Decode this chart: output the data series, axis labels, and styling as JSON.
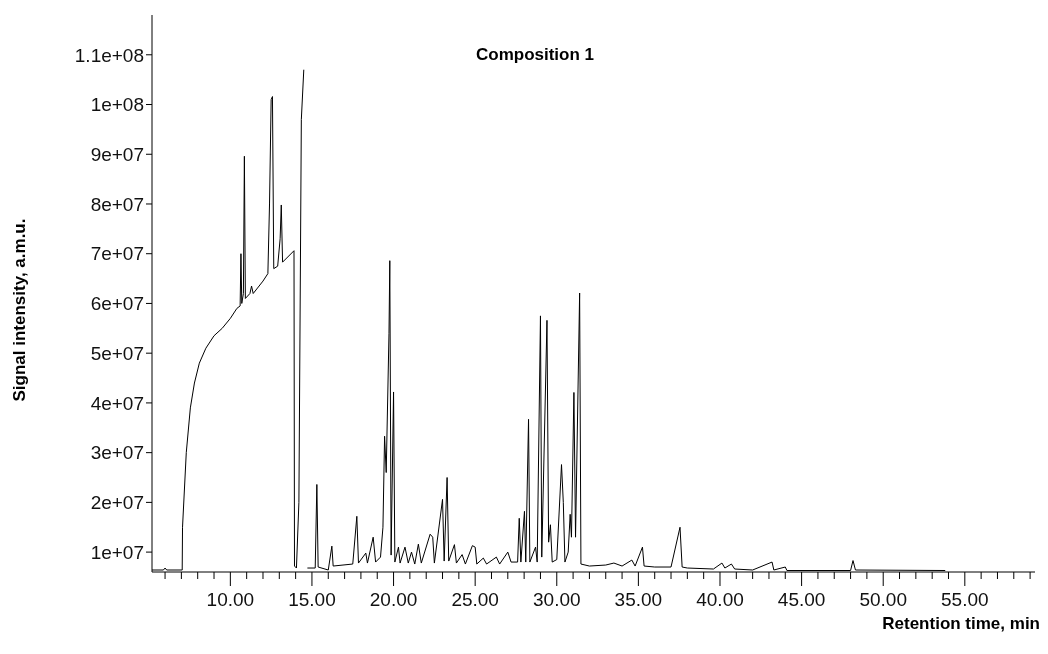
{
  "chart_data": {
    "type": "line",
    "title": "Composition 1",
    "xlabel": "Retention time, min",
    "ylabel": "Signal intensity, a.m.u.",
    "xlim": [
      5.2,
      59.3
    ],
    "ylim": [
      6000000,
      118000000
    ],
    "xticks": [
      {
        "value": 6,
        "label": null
      },
      {
        "value": 7,
        "label": null
      },
      {
        "value": 8,
        "label": null
      },
      {
        "value": 9,
        "label": null
      },
      {
        "value": 10,
        "label": "10.00"
      },
      {
        "value": 11,
        "label": null
      },
      {
        "value": 12,
        "label": null
      },
      {
        "value": 13,
        "label": null
      },
      {
        "value": 14,
        "label": null
      },
      {
        "value": 15,
        "label": "15.00"
      },
      {
        "value": 16,
        "label": null
      },
      {
        "value": 17,
        "label": null
      },
      {
        "value": 18,
        "label": null
      },
      {
        "value": 19,
        "label": null
      },
      {
        "value": 20,
        "label": "20.00"
      },
      {
        "value": 21,
        "label": null
      },
      {
        "value": 22,
        "label": null
      },
      {
        "value": 23,
        "label": null
      },
      {
        "value": 24,
        "label": null
      },
      {
        "value": 25,
        "label": "25.00"
      },
      {
        "value": 26,
        "label": null
      },
      {
        "value": 27,
        "label": null
      },
      {
        "value": 28,
        "label": null
      },
      {
        "value": 29,
        "label": null
      },
      {
        "value": 30,
        "label": "30.00"
      },
      {
        "value": 31,
        "label": null
      },
      {
        "value": 32,
        "label": null
      },
      {
        "value": 33,
        "label": null
      },
      {
        "value": 34,
        "label": null
      },
      {
        "value": 35,
        "label": "35.00"
      },
      {
        "value": 36,
        "label": null
      },
      {
        "value": 37,
        "label": null
      },
      {
        "value": 38,
        "label": null
      },
      {
        "value": 39,
        "label": null
      },
      {
        "value": 40,
        "label": "40.00"
      },
      {
        "value": 41,
        "label": null
      },
      {
        "value": 42,
        "label": null
      },
      {
        "value": 43,
        "label": null
      },
      {
        "value": 44,
        "label": null
      },
      {
        "value": 45,
        "label": "45.00"
      },
      {
        "value": 46,
        "label": null
      },
      {
        "value": 47,
        "label": null
      },
      {
        "value": 48,
        "label": null
      },
      {
        "value": 49,
        "label": null
      },
      {
        "value": 50,
        "label": "50.00"
      },
      {
        "value": 51,
        "label": null
      },
      {
        "value": 52,
        "label": null
      },
      {
        "value": 53,
        "label": null
      },
      {
        "value": 54,
        "label": null
      },
      {
        "value": 55,
        "label": "55.00"
      },
      {
        "value": 56,
        "label": null
      },
      {
        "value": 57,
        "label": null
      },
      {
        "value": 58,
        "label": null
      },
      {
        "value": 59,
        "label": null
      }
    ],
    "yticks": [
      {
        "value": 10000000,
        "label": "1e+07"
      },
      {
        "value": 20000000,
        "label": "2e+07"
      },
      {
        "value": 30000000,
        "label": "3e+07"
      },
      {
        "value": 40000000,
        "label": "4e+07"
      },
      {
        "value": 50000000,
        "label": "5e+07"
      },
      {
        "value": 60000000,
        "label": "6e+07"
      },
      {
        "value": 70000000,
        "label": "7e+07"
      },
      {
        "value": 80000000,
        "label": "8e+07"
      },
      {
        "value": 90000000,
        "label": "9e+07"
      },
      {
        "value": 100000000,
        "label": "1e+08"
      },
      {
        "value": 110000000,
        "label": "1.1e+08"
      }
    ],
    "grid": false,
    "legend": false,
    "marker": "none",
    "line_style": "solid",
    "series": [
      {
        "color": "#000000",
        "x": [
          5.2,
          5.9,
          6.0,
          6.1,
          7.05,
          7.07,
          7.3,
          7.55,
          7.8,
          8.1,
          8.5,
          9.0,
          9.5,
          10.0,
          10.4,
          10.6,
          10.65,
          10.7,
          10.8,
          10.86,
          10.92,
          11.2,
          11.3,
          11.4,
          12.0,
          12.3,
          12.4,
          12.5,
          12.58,
          12.66,
          12.9,
          13.05,
          13.12,
          13.2,
          13.9,
          13.93,
          14.05,
          14.2,
          14.35,
          14.5,
          14.6,
          14.68,
          14.72,
          15.2,
          15.3,
          15.38,
          16.0,
          16.22,
          16.3,
          17.5,
          17.75,
          17.85,
          18.3,
          18.4,
          18.75,
          18.9,
          19.2,
          19.35,
          19.45,
          19.55,
          19.72,
          19.77,
          19.85,
          20.0,
          20.08,
          20.3,
          20.4,
          20.7,
          20.9,
          21.1,
          21.3,
          21.52,
          21.7,
          22.24,
          22.4,
          22.5,
          23.0,
          23.1,
          23.28,
          23.38,
          23.73,
          23.85,
          24.2,
          24.4,
          24.83,
          25.0,
          25.1,
          25.5,
          25.7,
          26.3,
          26.5,
          27.0,
          27.2,
          27.6,
          27.7,
          27.8,
          28.02,
          28.1,
          28.27,
          28.35,
          28.7,
          28.8,
          29.0,
          29.08,
          29.4,
          29.5,
          29.61,
          29.72,
          30.0,
          30.29,
          30.4,
          30.5,
          30.7,
          30.82,
          30.9,
          31.05,
          31.15,
          31.4,
          31.48,
          32.0,
          33.0,
          33.5,
          34.0,
          34.6,
          34.8,
          35.25,
          35.35,
          36.0,
          37.0,
          37.55,
          37.68,
          38.0,
          39.6,
          40.12,
          40.3,
          40.7,
          40.9,
          42.0,
          43.19,
          43.3,
          44.0,
          44.1,
          48.0,
          48.15,
          48.3,
          53.8
        ],
        "values": [
          6400000,
          6400000,
          6800000,
          6400000,
          6400000,
          15000000,
          30000000,
          39000000,
          44000000,
          48000000,
          51000000,
          53500000,
          55000000,
          57000000,
          59000000,
          59500000,
          70000000,
          60000000,
          62000000,
          89600000,
          61000000,
          62000000,
          63500000,
          62000000,
          64500000,
          66000000,
          80000000,
          101000000,
          101600000,
          67000000,
          67500000,
          73000000,
          79800000,
          68300000,
          70600000,
          7200000,
          6800000,
          20000000,
          97000000,
          107000000,
          null,
          null,
          6800000,
          6800000,
          23600000,
          7000000,
          6400000,
          11200000,
          7200000,
          7600000,
          17200000,
          7800000,
          9800000,
          7800000,
          13000000,
          8000000,
          9000000,
          15000000,
          33300000,
          26000000,
          54000000,
          68600000,
          9400000,
          42200000,
          8000000,
          11000000,
          7800000,
          11000000,
          7800000,
          10000000,
          7600000,
          11600000,
          7800000,
          13600000,
          13000000,
          7800000,
          20600000,
          8200000,
          25000000,
          8200000,
          11500000,
          7800000,
          9500000,
          7600000,
          11300000,
          11000000,
          7600000,
          8800000,
          7600000,
          9000000,
          7600000,
          10000000,
          8000000,
          8000000,
          16800000,
          8000000,
          18200000,
          8000000,
          36700000,
          8000000,
          11000000,
          8000000,
          57500000,
          9000000,
          56600000,
          12000000,
          15500000,
          8000000,
          8500000,
          27600000,
          20000000,
          8000000,
          10000000,
          17600000,
          13000000,
          42100000,
          13000000,
          62100000,
          7600000,
          7200000,
          7400000,
          7800000,
          7200000,
          8400000,
          7200000,
          11000000,
          7200000,
          7000000,
          7000000,
          15000000,
          7000000,
          6800000,
          6600000,
          7800000,
          6800000,
          7600000,
          6600000,
          6400000,
          8000000,
          6400000,
          7000000,
          6300000,
          6300000,
          8300000,
          6400000,
          6300000
        ]
      }
    ]
  }
}
